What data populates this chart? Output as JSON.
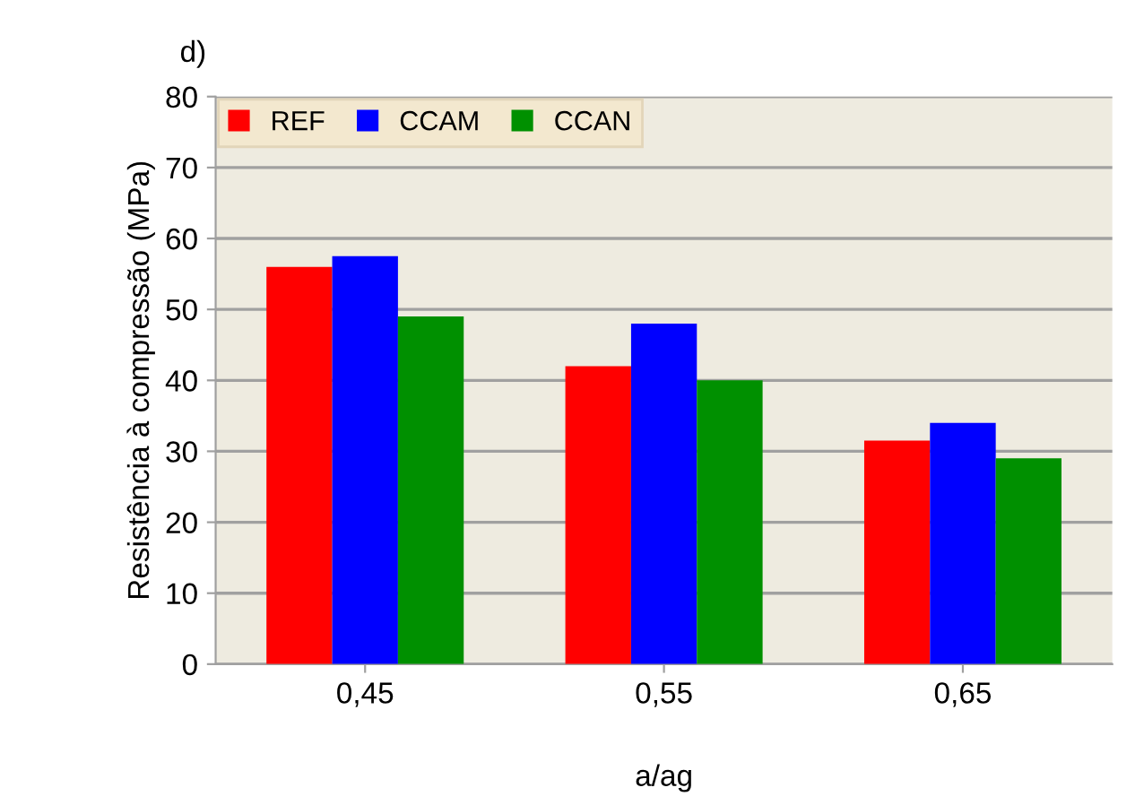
{
  "chart_data": {
    "type": "bar",
    "title": "d)",
    "xlabel": "a/ag",
    "ylabel": "Resistência à compressão (MPa)",
    "categories": [
      "0,45",
      "0,55",
      "0,65"
    ],
    "series": [
      {
        "name": "REF",
        "color": "#ff0000",
        "values": [
          56,
          42,
          31.5
        ]
      },
      {
        "name": "CCAM",
        "color": "#0000ff",
        "values": [
          57.5,
          48,
          34
        ]
      },
      {
        "name": "CCAN",
        "color": "#009000",
        "values": [
          49,
          40,
          29
        ]
      }
    ],
    "ylim": [
      0,
      80
    ],
    "yticks": [
      0,
      10,
      20,
      30,
      40,
      50,
      60,
      70,
      80
    ],
    "grid": "y",
    "legend": "top left"
  }
}
